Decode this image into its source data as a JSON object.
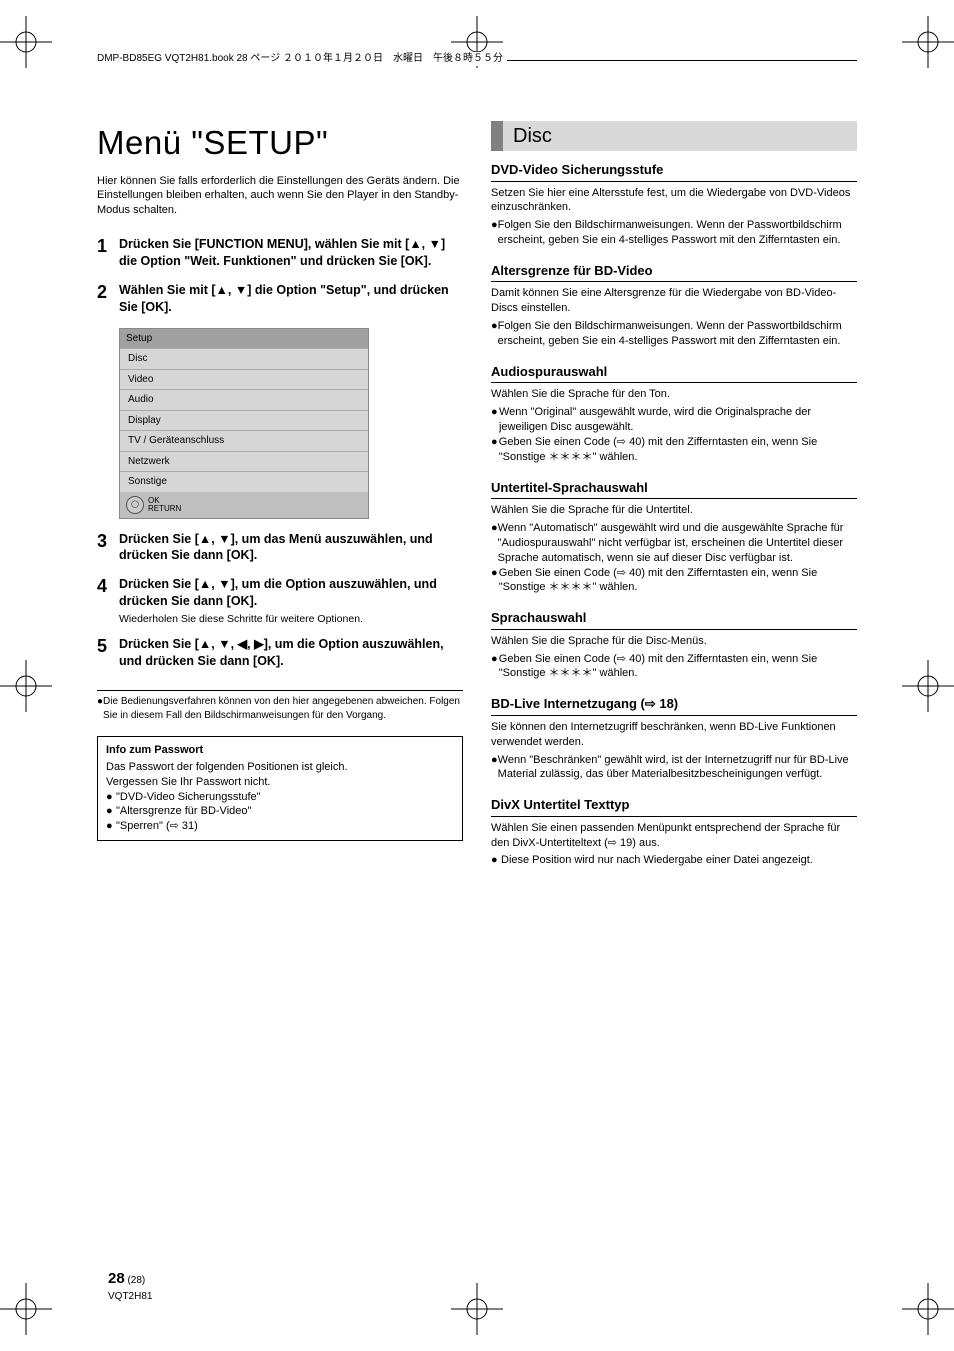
{
  "header": {
    "running_head": "DMP-BD85EG VQT2H81.book  28 ページ  ２０１０年１月２０日　水曜日　午後８時５５分"
  },
  "left": {
    "title": "Menü \"SETUP\"",
    "intro": "Hier können Sie falls erforderlich die Einstellungen des Geräts ändern. Die Einstellungen bleiben erhalten, auch wenn Sie den Player in den Standby-Modus schalten.",
    "steps": [
      {
        "n": "1",
        "bold": "Drücken Sie [FUNCTION MENU], wählen Sie mit [▲, ▼] die Option \"Weit. Funktionen\" und drücken Sie [OK]."
      },
      {
        "n": "2",
        "bold": "Wählen Sie mit [▲, ▼] die Option \"Setup\", und drücken Sie [OK]."
      },
      {
        "n": "3",
        "bold": "Drücken Sie [▲, ▼], um das Menü auszuwählen, und drücken Sie dann [OK]."
      },
      {
        "n": "4",
        "bold": "Drücken Sie [▲, ▼], um die Option auszuwählen, und drücken Sie dann [OK].",
        "small": "Wiederholen Sie diese Schritte für weitere Optionen."
      },
      {
        "n": "5",
        "bold": "Drücken Sie [▲, ▼, ◀, ▶], um die Option auszuwählen, und drücken Sie dann [OK]."
      }
    ],
    "menu": {
      "header": "Setup",
      "rows": [
        "Disc",
        "Video",
        "Audio",
        "Display",
        "TV / Geräteanschluss",
        "Netzwerk",
        "Sonstige"
      ],
      "ok": "OK",
      "return": "RETURN"
    },
    "note_lines": [
      "Die Bedienungsverfahren können von den hier angegebenen abweichen. Folgen Sie in diesem Fall den Bildschirmanweisungen für den Vorgang."
    ],
    "info_box": {
      "title": "Info zum Passwort",
      "lines": [
        "Das Passwort der folgenden Positionen ist gleich.",
        "Vergessen Sie Ihr Passwort nicht."
      ],
      "bullets": [
        "\"DVD-Video Sicherungsstufe\"",
        "\"Altersgrenze für BD-Video\"",
        "\"Sperren\" (⇨ 31)"
      ]
    }
  },
  "right": {
    "section_title": "Disc",
    "sections": [
      {
        "h": "DVD-Video Sicherungsstufe",
        "p": "Setzen Sie hier eine Altersstufe fest, um die Wiedergabe von DVD-Videos einzuschränken.",
        "bullets": [
          "Folgen Sie den Bildschirmanweisungen. Wenn der Passwortbildschirm erscheint, geben Sie ein 4-stelliges Passwort mit den Zifferntasten ein."
        ]
      },
      {
        "h": "Altersgrenze für BD-Video",
        "p": "Damit können Sie eine Altersgrenze für die Wiedergabe von BD-Video-Discs einstellen.",
        "bullets": [
          "Folgen Sie den Bildschirmanweisungen. Wenn der Passwortbildschirm erscheint, geben Sie ein 4-stelliges Passwort mit den Zifferntasten ein."
        ]
      },
      {
        "h": "Audiospurauswahl",
        "p": "Wählen Sie die Sprache für den Ton.",
        "bullets": [
          "Wenn \"Original\" ausgewählt wurde, wird die Originalsprache der jeweiligen Disc ausgewählt.",
          "Geben Sie einen Code (⇨ 40) mit den Zifferntasten ein, wenn Sie \"Sonstige ＊＊＊＊\" wählen."
        ]
      },
      {
        "h": "Untertitel-Sprachauswahl",
        "p": "Wählen Sie die Sprache für die Untertitel.",
        "bullets": [
          "Wenn \"Automatisch\" ausgewählt wird und die ausgewählte Sprache für \"Audiospurauswahl\" nicht verfügbar ist, erscheinen die Untertitel dieser Sprache automatisch, wenn sie auf dieser Disc verfügbar ist.",
          "Geben Sie einen Code (⇨ 40) mit den Zifferntasten ein, wenn Sie \"Sonstige ＊＊＊＊\" wählen."
        ]
      },
      {
        "h": "Sprachauswahl",
        "p": "Wählen Sie die Sprache für die Disc-Menüs.",
        "bullets": [
          "Geben Sie einen Code (⇨ 40) mit den Zifferntasten ein, wenn Sie \"Sonstige ＊＊＊＊\" wählen."
        ]
      },
      {
        "h": "BD-Live Internetzugang (⇨ 18)",
        "p": "Sie können den Internetzugriff beschränken, wenn BD-Live Funktionen verwendet werden.",
        "bullets": [
          "Wenn \"Beschränken\" gewählt wird, ist der Internetzugriff nur für BD-Live Material zulässig, das über Materialbesitzbescheinigungen verfügt."
        ]
      },
      {
        "h": "DivX Untertitel Texttyp",
        "p": "Wählen Sie einen passenden Menüpunkt entsprechend der Sprache für den DivX-Untertiteltext (⇨ 19) aus.",
        "bullets": [
          "Diese Position wird nur nach Wiedergabe einer Datei angezeigt."
        ]
      }
    ]
  },
  "footer": {
    "page_big": "28",
    "page_small": "(28)",
    "code": "VQT2H81"
  }
}
